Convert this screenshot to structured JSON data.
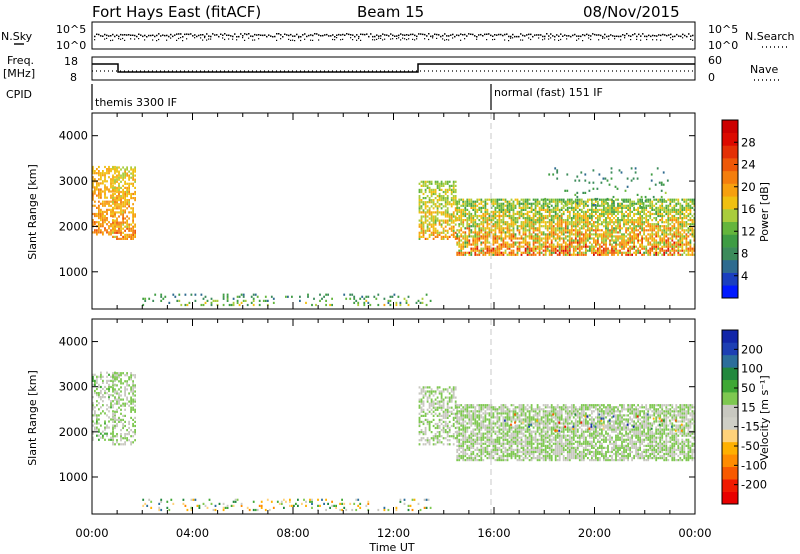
{
  "header": {
    "title": "Fort Hays East (fitACF)",
    "beam": "Beam 15",
    "date": "08/Nov/2015"
  },
  "aux_labels": {
    "nsky": "N.Sky",
    "nsearch": "N.Search",
    "freq": "Freq.",
    "freq_unit": "[MHz]",
    "nave": "Nave",
    "cpid": "CPID",
    "nsky_ticks": [
      "10^5",
      "10^0"
    ],
    "nsearch_ticks": [
      "10^5",
      "10^0"
    ],
    "freq_ticks": [
      "18",
      "8"
    ],
    "nave_ticks": [
      "60",
      "0"
    ]
  },
  "cpid_segments": [
    {
      "start_hour": 0,
      "label": "themis 3300 IF"
    },
    {
      "start_hour": 16,
      "label": "normal (fast) 151 IF"
    }
  ],
  "colorbars": {
    "power": {
      "label": "Power [dB]",
      "ticks": [
        "28",
        "24",
        "20",
        "16",
        "12",
        "8",
        "4"
      ],
      "colors": [
        "#0019ff",
        "#1a3fbf",
        "#2e6b8f",
        "#3c8b5b",
        "#3f9c44",
        "#64b53c",
        "#a9cc3c",
        "#f0c010",
        "#f7a00e",
        "#f47e0c",
        "#ee5808",
        "#e43006",
        "#dc0a00",
        "#cc0000"
      ]
    },
    "velocity": {
      "label": "Velocity [m s⁻¹]",
      "ticks": [
        "200",
        "100",
        "50",
        "15",
        "-15",
        "-50",
        "-100",
        "-200"
      ],
      "colors": [
        "#e80000",
        "#f01a00",
        "#f85a00",
        "#ff8c00",
        "#ffb000",
        "#ffd27a",
        "#cfcfc6",
        "#c8c8c0",
        "#7ec850",
        "#3fa835",
        "#22883e",
        "#2c6e9b",
        "#1d3fb3",
        "#1226a8"
      ]
    }
  },
  "chart_data": [
    {
      "type": "heatmap",
      "parameter": "power",
      "ylabel": "Slant Range [km]",
      "xlabel": "",
      "xlim": [
        0,
        24
      ],
      "ylim": [
        180,
        4500
      ],
      "yticks": [
        "4000",
        "3000",
        "2000",
        "1000"
      ],
      "xticks": [],
      "regions": [
        {
          "t0": 0.0,
          "t1": 0.9,
          "r0": 1800,
          "r1": 3300,
          "power": [
            14,
            22
          ],
          "density": 0.6
        },
        {
          "t0": 0.8,
          "t1": 1.7,
          "r0": 1700,
          "r1": 3300,
          "power": [
            12,
            24
          ],
          "density": 0.6
        },
        {
          "t0": 13.0,
          "t1": 14.5,
          "r0": 1700,
          "r1": 3000,
          "power": [
            10,
            22
          ],
          "density": 0.55
        },
        {
          "t0": 14.5,
          "t1": 24.0,
          "r0": 1350,
          "r1": 2600,
          "power": [
            8,
            28
          ],
          "density": 0.75
        },
        {
          "t0": 18.0,
          "t1": 23.0,
          "r0": 2400,
          "r1": 3300,
          "power": [
            4,
            16
          ],
          "density": 0.08
        },
        {
          "t0": 2.0,
          "t1": 13.5,
          "r0": 200,
          "r1": 500,
          "power": [
            4,
            20
          ],
          "density": 0.18
        }
      ]
    },
    {
      "type": "heatmap",
      "parameter": "velocity",
      "ylabel": "Slant Range [km]",
      "xlabel": "Time UT",
      "xlim": [
        0,
        24
      ],
      "ylim": [
        180,
        4500
      ],
      "yticks": [
        "4000",
        "3000",
        "2000",
        "1000"
      ],
      "xticks": [
        "00:00",
        "04:00",
        "08:00",
        "12:00",
        "16:00",
        "20:00",
        "00:00"
      ],
      "regions": [
        {
          "t0": 0.0,
          "t1": 0.9,
          "r0": 1800,
          "r1": 3300,
          "velocity": [
            -20,
            20
          ],
          "density": 0.45
        },
        {
          "t0": 0.8,
          "t1": 1.7,
          "r0": 1700,
          "r1": 3300,
          "velocity": [
            -15,
            15
          ],
          "density": 0.45
        },
        {
          "t0": 13.0,
          "t1": 14.5,
          "r0": 1700,
          "r1": 3000,
          "velocity": [
            -15,
            15
          ],
          "density": 0.5
        },
        {
          "t0": 14.5,
          "t1": 24.0,
          "r0": 1350,
          "r1": 2600,
          "velocity": [
            -15,
            15
          ],
          "density": 0.75
        },
        {
          "t0": 16.0,
          "t1": 23.5,
          "r0": 2000,
          "r1": 2400,
          "velocity": [
            -200,
            200
          ],
          "density": 0.05
        },
        {
          "t0": 2.0,
          "t1": 13.5,
          "r0": 200,
          "r1": 500,
          "velocity": [
            -80,
            60
          ],
          "density": 0.18
        }
      ]
    }
  ]
}
